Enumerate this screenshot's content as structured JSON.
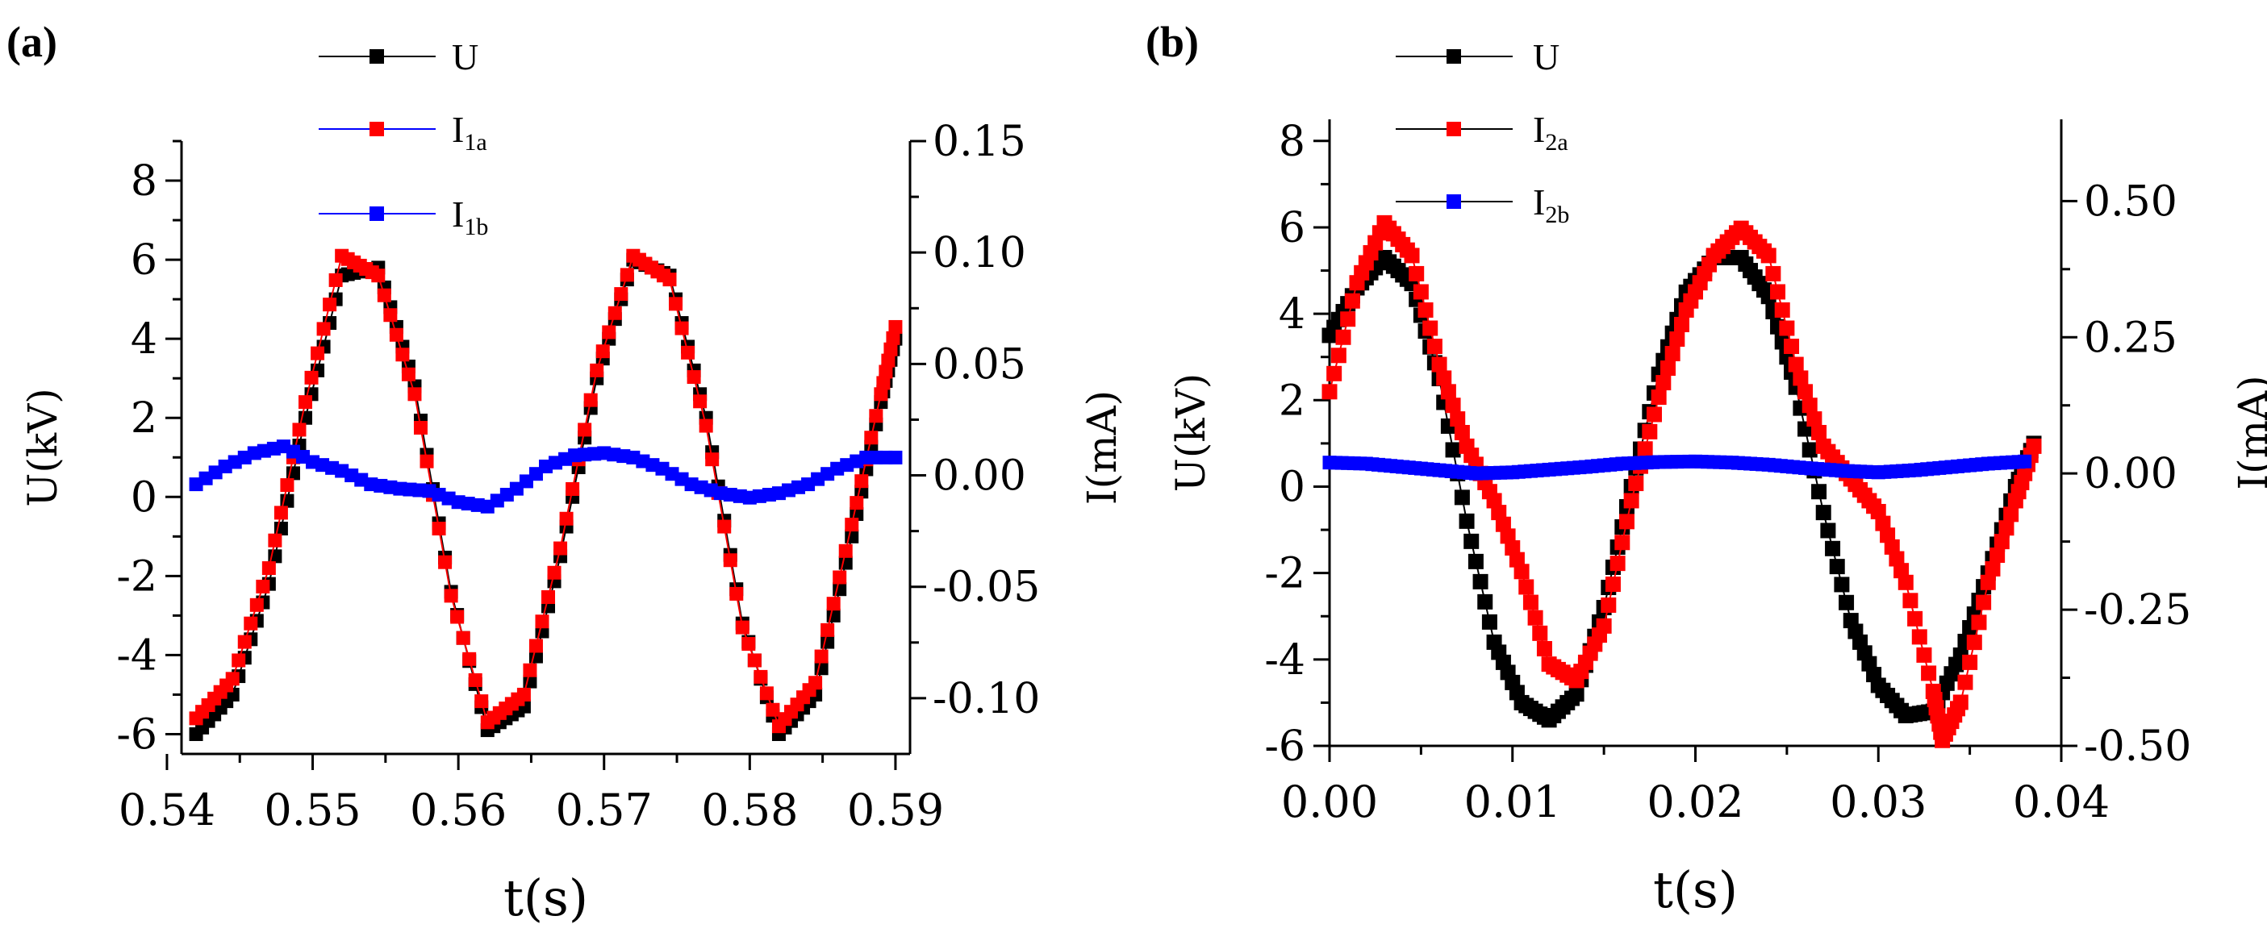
{
  "figure": {
    "panel_a_label": "(a)",
    "panel_b_label": "(b)"
  },
  "chart_data": [
    {
      "type": "line",
      "panel": "(a)",
      "xlabel": "t(s)",
      "ylabel_left": "U(kV)",
      "ylabel_right": "I(mA)",
      "xlim": [
        0.541,
        0.591
      ],
      "ylim_left": [
        -6.5,
        9
      ],
      "ylim_right": [
        -0.125,
        0.15
      ],
      "x_ticks": [
        "0.54",
        "0.55",
        "0.56",
        "0.57",
        "0.58",
        "0.59"
      ],
      "y_left_ticks": [
        "-6",
        "-4",
        "-2",
        "0",
        "2",
        "4",
        "6",
        "8"
      ],
      "y_right_ticks": [
        "-0.10",
        "-0.05",
        "0.00",
        "0.05",
        "0.10",
        "0.15"
      ],
      "grid": false,
      "legend_position": "top-center",
      "legend": [
        {
          "name": "U",
          "sub": "",
          "line_color": "#000000",
          "marker_color": "#000000"
        },
        {
          "name": "I",
          "sub": "1a",
          "line_color": "#0000ff",
          "marker_color": "#ff0000"
        },
        {
          "name": "I",
          "sub": "1b",
          "line_color": "#0000ff",
          "marker_color": "#0000ff"
        }
      ],
      "series": [
        {
          "name": "U",
          "axis": "left",
          "color": "#000000",
          "x": [
            0.542,
            0.5445,
            0.547,
            0.5495,
            0.552,
            0.5545,
            0.557,
            0.5595,
            0.562,
            0.5645,
            0.567,
            0.5695,
            0.572,
            0.5745,
            0.577,
            0.5795,
            0.582,
            0.5845,
            0.587,
            0.589,
            0.59
          ],
          "y": [
            -6.0,
            -5.0,
            -2.2,
            2.0,
            5.6,
            5.8,
            2.8,
            -2.4,
            -5.9,
            -5.3,
            -1.5,
            3.0,
            6.0,
            5.6,
            2.0,
            -3.2,
            -6.0,
            -5.0,
            -1.0,
            2.4,
            4.0
          ]
        },
        {
          "name": "I1a",
          "axis": "left",
          "color": "#ff0000",
          "x": [
            0.542,
            0.5445,
            0.547,
            0.5495,
            0.552,
            0.5545,
            0.557,
            0.5595,
            0.562,
            0.5645,
            0.567,
            0.5695,
            0.572,
            0.5745,
            0.577,
            0.5795,
            0.582,
            0.5845,
            0.587,
            0.589,
            0.59
          ],
          "y": [
            -5.6,
            -4.6,
            -1.8,
            2.4,
            6.1,
            5.6,
            2.6,
            -2.5,
            -5.7,
            -5.0,
            -1.3,
            3.2,
            6.1,
            5.5,
            1.8,
            -3.3,
            -5.8,
            -4.7,
            -0.7,
            2.6,
            4.3
          ]
        },
        {
          "name": "I1b",
          "axis": "right",
          "color": "#0000ff",
          "x": [
            0.542,
            0.544,
            0.546,
            0.548,
            0.55,
            0.552,
            0.554,
            0.556,
            0.558,
            0.56,
            0.562,
            0.564,
            0.566,
            0.568,
            0.57,
            0.572,
            0.574,
            0.576,
            0.578,
            0.58,
            0.582,
            0.584,
            0.586,
            0.588,
            0.59
          ],
          "y": [
            -0.004,
            0.004,
            0.01,
            0.013,
            0.006,
            0.002,
            -0.004,
            -0.006,
            -0.007,
            -0.012,
            -0.014,
            -0.006,
            0.004,
            0.009,
            0.01,
            0.008,
            0.003,
            -0.004,
            -0.008,
            -0.01,
            -0.008,
            -0.004,
            0.003,
            0.008,
            0.008
          ]
        }
      ]
    },
    {
      "type": "line",
      "panel": "(b)",
      "xlabel": "t(s)",
      "ylabel_left": "U(kV)",
      "ylabel_right": "I(mA)",
      "xlim": [
        0.0,
        0.04
      ],
      "ylim_left": [
        -6,
        8.5
      ],
      "ylim_right": [
        -0.5,
        0.65
      ],
      "x_ticks": [
        "0.00",
        "0.01",
        "0.02",
        "0.03",
        "0.04"
      ],
      "y_left_ticks": [
        "-6",
        "-4",
        "-2",
        "0",
        "2",
        "4",
        "6",
        "8"
      ],
      "y_right_ticks": [
        "-0.50",
        "-0.25",
        "0.00",
        "0.25",
        "0.50"
      ],
      "grid": false,
      "legend_position": "top-center",
      "legend": [
        {
          "name": "U",
          "sub": "",
          "line_color": "#000000",
          "marker_color": "#000000"
        },
        {
          "name": "I",
          "sub": "2a",
          "line_color": "#000000",
          "marker_color": "#ff0000"
        },
        {
          "name": "I",
          "sub": "2b",
          "line_color": "#000000",
          "marker_color": "#0000ff"
        }
      ],
      "series": [
        {
          "name": "U",
          "axis": "left",
          "color": "#000000",
          "x": [
            0.0,
            0.0015,
            0.003,
            0.0045,
            0.006,
            0.0075,
            0.009,
            0.0105,
            0.012,
            0.0135,
            0.015,
            0.0165,
            0.018,
            0.0195,
            0.021,
            0.0225,
            0.024,
            0.0255,
            0.027,
            0.0285,
            0.03,
            0.0315,
            0.033,
            0.0345,
            0.036,
            0.0375,
            0.0385
          ],
          "y": [
            3.5,
            4.6,
            5.3,
            4.7,
            2.5,
            -0.8,
            -3.6,
            -5.0,
            -5.4,
            -4.8,
            -2.8,
            0.0,
            2.6,
            4.5,
            5.3,
            5.3,
            4.4,
            2.3,
            -0.6,
            -3.1,
            -4.6,
            -5.3,
            -5.2,
            -3.9,
            -2.0,
            0.0,
            1.0
          ]
        },
        {
          "name": "I2a",
          "axis": "right",
          "color": "#ff0000",
          "x": [
            0.0,
            0.0015,
            0.003,
            0.0045,
            0.006,
            0.0075,
            0.009,
            0.0105,
            0.012,
            0.0135,
            0.015,
            0.0165,
            0.018,
            0.0195,
            0.021,
            0.0225,
            0.024,
            0.0255,
            0.027,
            0.0285,
            0.03,
            0.0315,
            0.033,
            0.0335,
            0.0345,
            0.036,
            0.0375,
            0.0385
          ],
          "y": [
            0.15,
            0.35,
            0.46,
            0.4,
            0.2,
            0.05,
            -0.05,
            -0.18,
            -0.35,
            -0.38,
            -0.28,
            -0.05,
            0.14,
            0.3,
            0.4,
            0.45,
            0.4,
            0.2,
            0.05,
            -0.01,
            -0.07,
            -0.2,
            -0.4,
            -0.49,
            -0.42,
            -0.2,
            -0.05,
            0.05
          ]
        },
        {
          "name": "I2b",
          "axis": "right",
          "color": "#0000ff",
          "x": [
            0.0,
            0.002,
            0.004,
            0.006,
            0.008,
            0.01,
            0.012,
            0.014,
            0.016,
            0.018,
            0.02,
            0.022,
            0.024,
            0.026,
            0.028,
            0.03,
            0.032,
            0.034,
            0.036,
            0.038
          ],
          "y": [
            0.02,
            0.018,
            0.012,
            0.006,
            0.0,
            0.002,
            0.007,
            0.012,
            0.018,
            0.021,
            0.022,
            0.02,
            0.016,
            0.01,
            0.005,
            0.002,
            0.006,
            0.012,
            0.018,
            0.022
          ]
        }
      ]
    }
  ]
}
